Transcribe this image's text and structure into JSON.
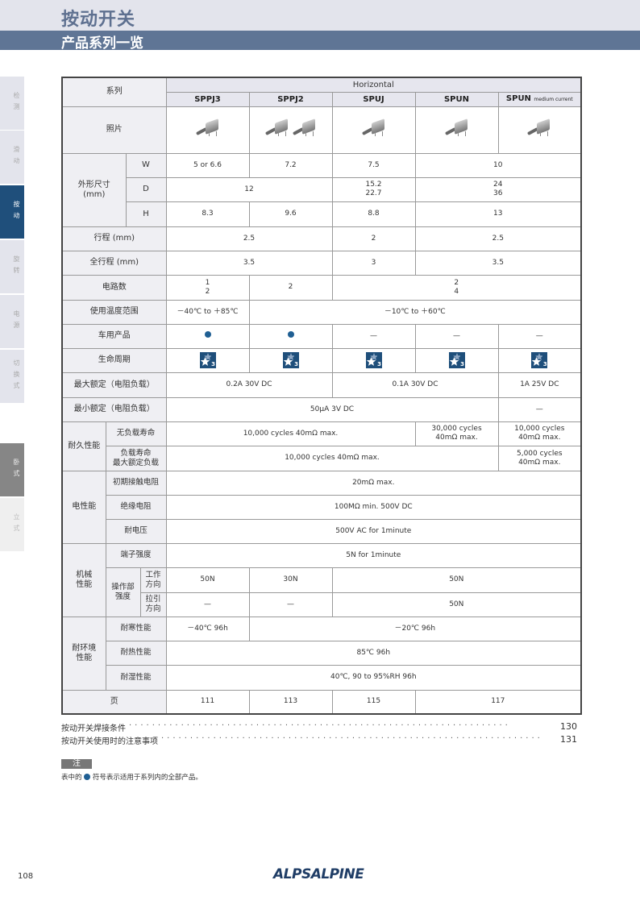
{
  "header": {
    "title": "按动开关",
    "subtitle": "产品系列一览"
  },
  "side_tabs": [
    {
      "label": "检测",
      "state": "normal"
    },
    {
      "label": "滑动",
      "state": "normal"
    },
    {
      "label": "按动",
      "state": "active"
    },
    {
      "label": "旋转",
      "state": "normal"
    },
    {
      "label": "电源",
      "state": "normal"
    },
    {
      "label": "切换式",
      "state": "normal"
    },
    {
      "label": "卧式",
      "state": "selected"
    },
    {
      "label": "立式",
      "state": "light"
    }
  ],
  "table": {
    "series_label": "系列",
    "group": "Horizontal",
    "models": [
      "SPPJ3",
      "SPPJ2",
      "SPUJ",
      "SPUN",
      "SPUN"
    ],
    "model_suffix": "medium current",
    "photo_label": "照片",
    "dims_label": "外形尺寸\n(mm)",
    "rows": {
      "W": {
        "label": "W",
        "cells": [
          [
            "5 or 6.6",
            1
          ],
          [
            "7.2",
            1
          ],
          [
            "7.5",
            1
          ],
          [
            "10",
            2
          ]
        ]
      },
      "D": {
        "label": "D",
        "cells": [
          [
            "12",
            2
          ],
          [
            "15.2\n22.7",
            1
          ],
          [
            "24\n36",
            2
          ]
        ]
      },
      "H": {
        "label": "H",
        "cells": [
          [
            "8.3",
            1
          ],
          [
            "9.6",
            1
          ],
          [
            "8.8",
            1
          ],
          [
            "13",
            2
          ]
        ]
      },
      "stroke": {
        "label": "行程 (mm)",
        "cells": [
          [
            "2.5",
            2
          ],
          [
            "2",
            1
          ],
          [
            "2.5",
            2
          ]
        ]
      },
      "total_stroke": {
        "label": "全行程 (mm)",
        "cells": [
          [
            "3.5",
            2
          ],
          [
            "3",
            1
          ],
          [
            "3.5",
            2
          ]
        ]
      },
      "circuits": {
        "label": "电路数",
        "cells": [
          [
            "1\n2",
            1
          ],
          [
            "2",
            1
          ],
          [
            "2\n4",
            3
          ]
        ]
      },
      "temp": {
        "label": "使用温度范围",
        "cells": [
          [
            "－40℃ to ＋85℃",
            1
          ],
          [
            "－10℃ to ＋60℃",
            4
          ]
        ]
      },
      "automotive": {
        "label": "车用产品",
        "cells": [
          [
            "●",
            1
          ],
          [
            "●",
            1
          ],
          [
            "—",
            1
          ],
          [
            "—",
            1
          ],
          [
            "—",
            1
          ]
        ]
      },
      "lifecycle": {
        "label": "生命周期",
        "cells": [
          [
            "3",
            1
          ],
          [
            "3",
            1
          ],
          [
            "3",
            1
          ],
          [
            "3",
            1
          ],
          [
            "3",
            1
          ]
        ]
      },
      "max_rating": {
        "label": "最大额定（电阻负载）",
        "cells": [
          [
            "0.2A 30V DC",
            2
          ],
          [
            "0.1A 30V DC",
            2
          ],
          [
            "1A 25V DC",
            1
          ]
        ]
      },
      "min_rating": {
        "label": "最小额定（电阻负载）",
        "cells": [
          [
            "50μA 3V DC",
            4
          ],
          [
            "—",
            1
          ]
        ]
      },
      "durability_group": "耐久性能",
      "no_load": {
        "label": "无负载寿命",
        "cells": [
          [
            "10,000 cycles 40mΩ max.",
            3
          ],
          [
            "30,000 cycles\n40mΩ max.",
            1
          ],
          [
            "10,000 cycles\n40mΩ max.",
            1
          ]
        ]
      },
      "load": {
        "label": "负载寿命\n最大额定负载",
        "cells": [
          [
            "10,000 cycles 40mΩ max.",
            4
          ],
          [
            "5,000 cycles\n40mΩ max.",
            1
          ]
        ]
      },
      "electrical_group": "电性能",
      "contact_res": {
        "label": "初期接触电阻",
        "cells": [
          [
            "20mΩ max.",
            5
          ]
        ]
      },
      "insulation": {
        "label": "绝缘电阻",
        "cells": [
          [
            "100MΩ min. 500V DC",
            5
          ]
        ]
      },
      "voltage_proof": {
        "label": "耐电压",
        "cells": [
          [
            "500V AC for 1minute",
            5
          ]
        ]
      },
      "mechanical_group": "机械\n性能",
      "terminal": {
        "label": "端子强度",
        "cells": [
          [
            "5N for 1minute",
            5
          ]
        ]
      },
      "operating_group": "操作部\n强度",
      "op_dir": {
        "label": "工作\n方向",
        "cells": [
          [
            "50N",
            1
          ],
          [
            "30N",
            1
          ],
          [
            "50N",
            3
          ]
        ]
      },
      "pull_dir": {
        "label": "拉引\n方向",
        "cells": [
          [
            "—",
            1
          ],
          [
            "—",
            1
          ],
          [
            "50N",
            3
          ]
        ]
      },
      "env_group": "耐环境\n性能",
      "cold": {
        "label": "耐寒性能",
        "cells": [
          [
            "－40℃ 96h",
            1
          ],
          [
            "－20℃  96h",
            4
          ]
        ]
      },
      "heat": {
        "label": "耐热性能",
        "cells": [
          [
            "85℃ 96h",
            5
          ]
        ]
      },
      "humidity": {
        "label": "耐湿性能",
        "cells": [
          [
            "40℃, 90 to 95%RH 96h",
            5
          ]
        ]
      },
      "page": {
        "label": "页",
        "cells": [
          [
            "111",
            1
          ],
          [
            "113",
            1
          ],
          [
            "115",
            1
          ],
          [
            "117",
            2
          ]
        ]
      }
    }
  },
  "toc": [
    {
      "label": "按动开关焊接条件",
      "page": "130"
    },
    {
      "label": "按动开关使用时的注意事项",
      "page": "131"
    }
  ],
  "note": {
    "badge": "注",
    "text_before": "表中的",
    "text_after": "符号表示适用于系列内的全部产品。"
  },
  "footer": {
    "page_number": "108",
    "logo": "ALPSALPINE"
  },
  "colors": {
    "accent": "#1f4f7b",
    "band": "#5f7595",
    "dot": "#1f5f93"
  }
}
